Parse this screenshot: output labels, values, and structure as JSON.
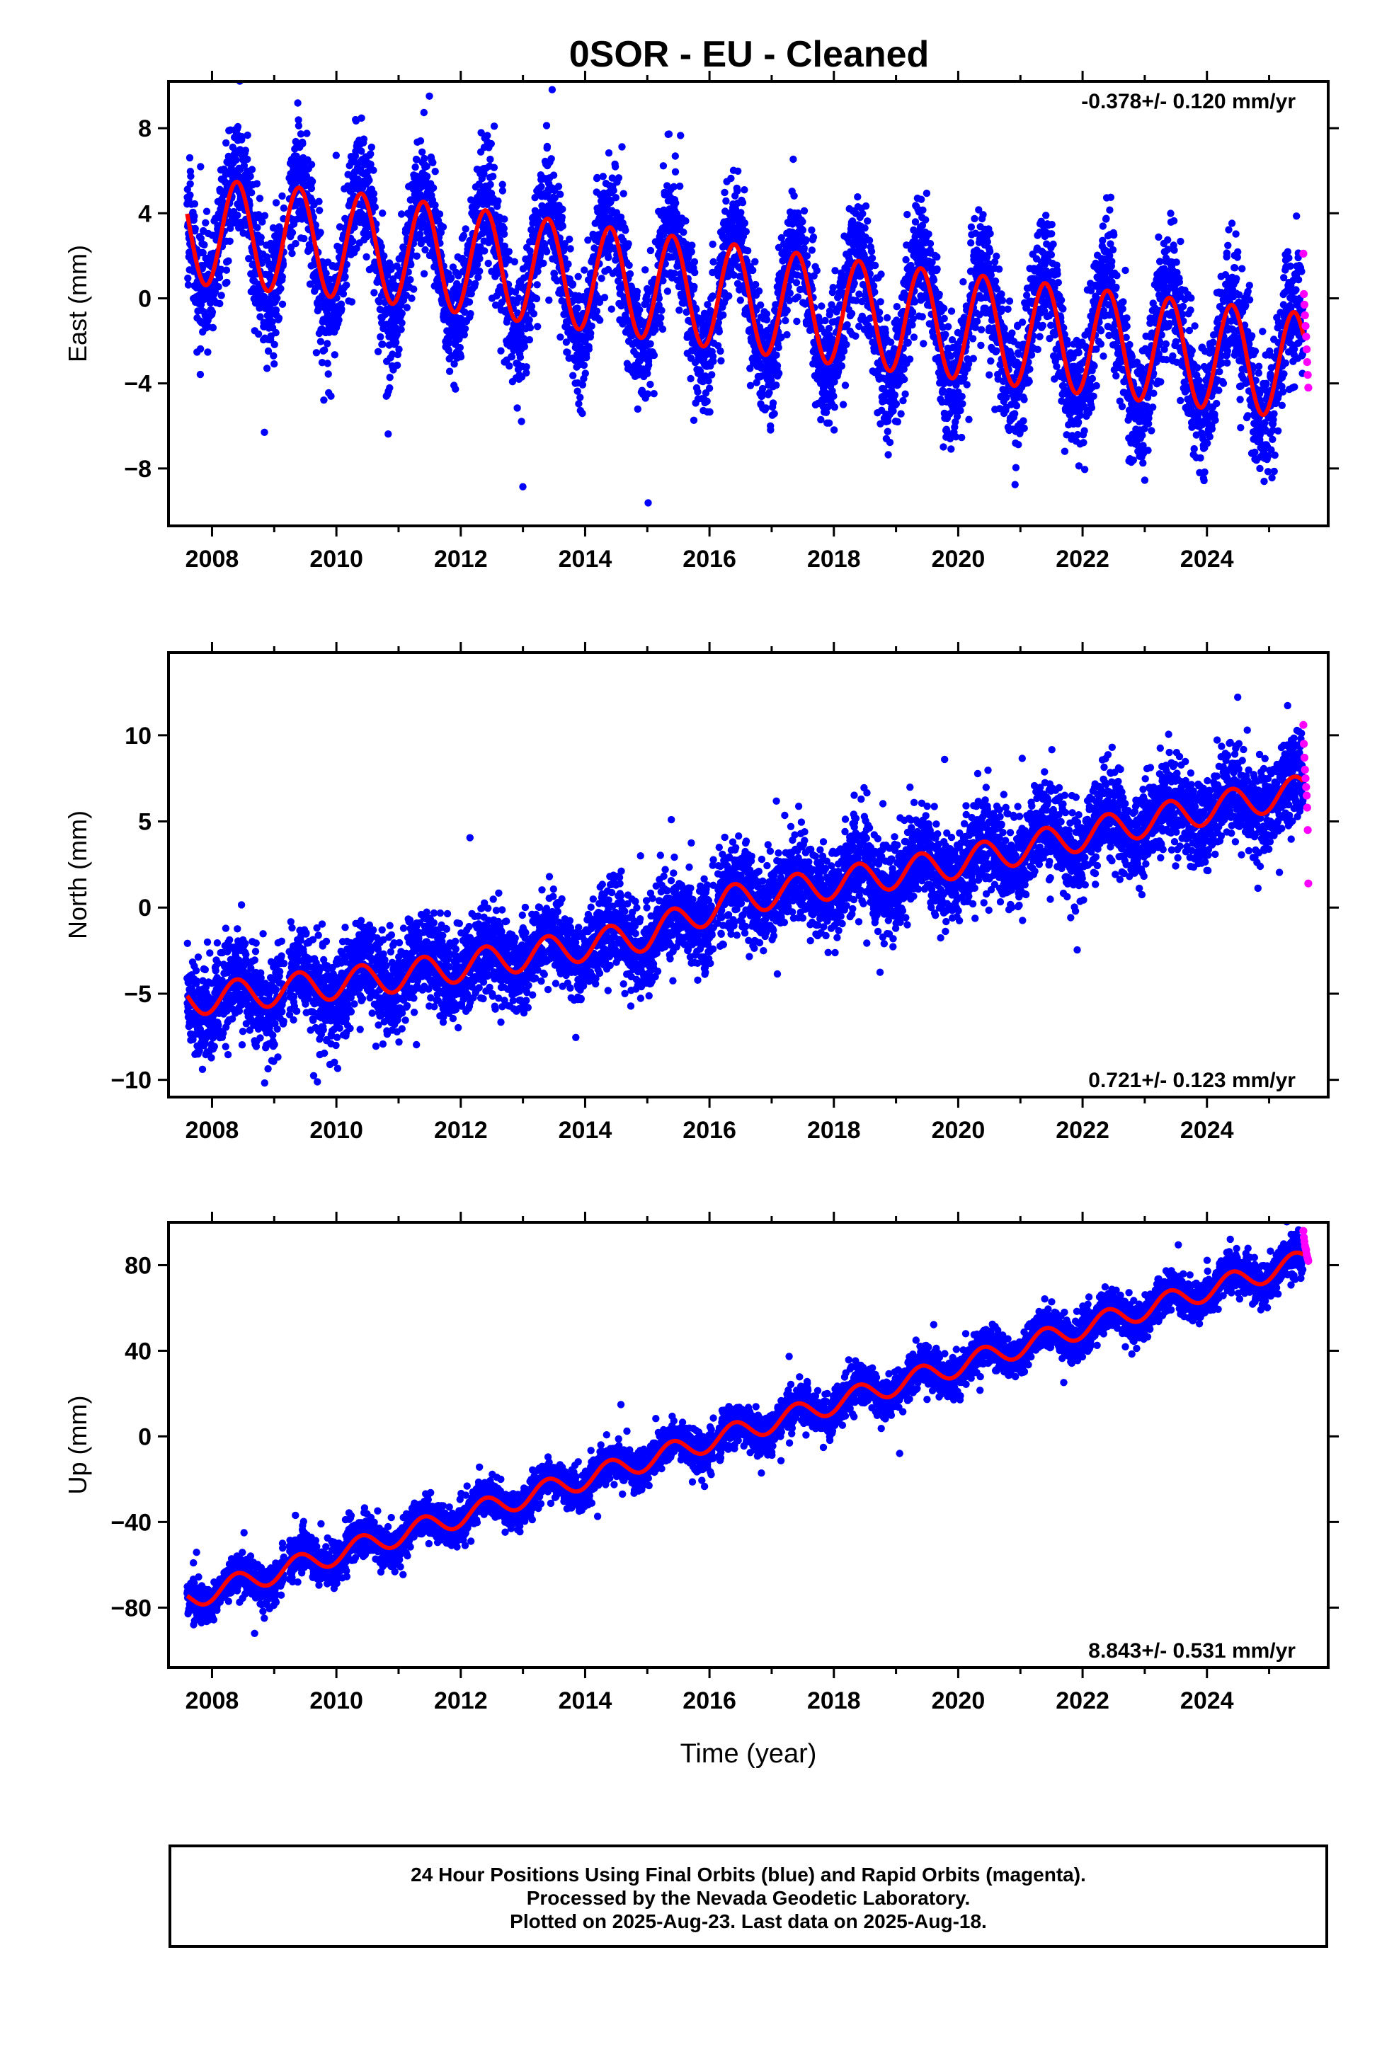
{
  "title": "0SOR  - EU - Cleaned",
  "colors": {
    "final": "#0000ff",
    "rapid": "#ff00ff",
    "fit": "#ff0000",
    "axis": "#000000"
  },
  "footer": {
    "line1": "24 Hour Positions Using Final Orbits (blue) and Rapid Orbits (magenta).",
    "line2": "Processed by the Nevada Geodetic Laboratory.",
    "line3": "Plotted on 2025-Aug-23. Last data on 2025-Aug-18."
  },
  "chart_data": [
    {
      "type": "scatter",
      "id": "east",
      "ylabel": "East (mm)",
      "xlabel": "",
      "xlim": [
        2007.3,
        2025.95
      ],
      "ylim": [
        -10.7,
        10.2
      ],
      "xticks": [
        2008,
        2010,
        2012,
        2014,
        2016,
        2018,
        2020,
        2022,
        2024
      ],
      "yticks": [
        -8,
        -4,
        0,
        4,
        8
      ],
      "ytick_labels": [
        "−8",
        "−4",
        "0",
        "4",
        "8"
      ],
      "rate_label": "-0.378+/- 0.120 mm/yr",
      "rate_position": "top-right",
      "rate_mm_per_yr": -0.378,
      "rate_sigma": 0.12,
      "series": [
        {
          "name": "Final Orbits",
          "color": "#0000ff",
          "x_start": 2007.6,
          "x_end": 2025.55,
          "intercept": 3.2,
          "rate": -0.378,
          "annual_amplitude": 3.0,
          "noise_sigma": 1.4,
          "trend_profile": [
            [
              2007.6,
              3.2
            ],
            [
              2010.5,
              2.4
            ],
            [
              2014.0,
              1.0
            ],
            [
              2018.0,
              -0.6
            ],
            [
              2022.0,
              -2.0
            ],
            [
              2025.55,
              -3.2
            ]
          ]
        },
        {
          "name": "Rapid Orbits",
          "color": "#ff00ff",
          "x_start": 2025.55,
          "x_end": 2025.63,
          "y_values": [
            2.1,
            0.2,
            -0.3,
            -0.8,
            -1.3,
            -1.8,
            -2.4,
            -3.0,
            -3.6,
            -4.2
          ]
        },
        {
          "name": "Fit",
          "color": "#ff0000",
          "rate": -0.378,
          "annual_amplitude": 2.5,
          "trend_profile": [
            [
              2007.6,
              3.2
            ],
            [
              2010.5,
              2.4
            ],
            [
              2014.0,
              1.0
            ],
            [
              2018.0,
              -0.6
            ],
            [
              2022.0,
              -2.0
            ],
            [
              2025.55,
              -3.2
            ]
          ]
        }
      ]
    },
    {
      "type": "scatter",
      "id": "north",
      "ylabel": "North (mm)",
      "xlabel": "",
      "xlim": [
        2007.3,
        2025.95
      ],
      "ylim": [
        -11.0,
        14.8
      ],
      "xticks": [
        2008,
        2010,
        2012,
        2014,
        2016,
        2018,
        2020,
        2022,
        2024
      ],
      "yticks": [
        -10,
        -5,
        0,
        5,
        10
      ],
      "ytick_labels": [
        "−10",
        "−5",
        "0",
        "5",
        "10"
      ],
      "rate_label": "0.721+/- 0.123 mm/yr",
      "rate_position": "bottom-right",
      "rate_mm_per_yr": 0.721,
      "rate_sigma": 0.123,
      "series": [
        {
          "name": "Final Orbits",
          "color": "#0000ff",
          "x_start": 2007.6,
          "x_end": 2025.55,
          "intercept": -5.4,
          "rate": 0.721,
          "annual_amplitude": 1.0,
          "noise_sigma": 1.3,
          "trend_profile": [
            [
              2007.6,
              -5.4
            ],
            [
              2011.0,
              -4.0
            ],
            [
              2015.0,
              -1.6
            ],
            [
              2016.3,
              0.4
            ],
            [
              2020.0,
              2.6
            ],
            [
              2023.0,
              5.0
            ],
            [
              2025.55,
              6.8
            ]
          ]
        },
        {
          "name": "Rapid Orbits",
          "color": "#ff00ff",
          "x_start": 2025.55,
          "x_end": 2025.63,
          "y_values": [
            10.6,
            9.5,
            8.7,
            8.0,
            7.5,
            7.0,
            6.5,
            5.8,
            4.5,
            1.4
          ]
        },
        {
          "name": "Fit",
          "color": "#ff0000",
          "rate": 0.721,
          "annual_amplitude": 0.9,
          "trend_profile": [
            [
              2007.6,
              -5.4
            ],
            [
              2011.0,
              -4.0
            ],
            [
              2015.0,
              -1.6
            ],
            [
              2016.3,
              0.4
            ],
            [
              2020.0,
              2.6
            ],
            [
              2023.0,
              5.0
            ],
            [
              2025.55,
              6.8
            ]
          ]
        }
      ]
    },
    {
      "type": "scatter",
      "id": "up",
      "ylabel": "Up (mm)",
      "xlabel": "Time (year)",
      "xlim": [
        2007.3,
        2025.95
      ],
      "ylim": [
        -108,
        100
      ],
      "xticks": [
        2008,
        2010,
        2012,
        2014,
        2016,
        2018,
        2020,
        2022,
        2024
      ],
      "yticks": [
        -80,
        -40,
        0,
        40,
        80
      ],
      "ytick_labels": [
        "−80",
        "−40",
        "0",
        "40",
        "80"
      ],
      "rate_label": "8.843+/- 0.531 mm/yr",
      "rate_position": "bottom-right",
      "rate_mm_per_yr": 8.843,
      "rate_sigma": 0.531,
      "series": [
        {
          "name": "Final Orbits",
          "color": "#0000ff",
          "x_start": 2007.6,
          "x_end": 2025.55,
          "intercept": -76,
          "rate": 8.843,
          "annual_amplitude": 5.5,
          "noise_sigma": 4.5,
          "trend_profile": [
            [
              2007.6,
              -76
            ],
            [
              2025.55,
              82
            ]
          ]
        },
        {
          "name": "Rapid Orbits",
          "color": "#ff00ff",
          "x_start": 2025.55,
          "x_end": 2025.63,
          "y_values": [
            96,
            93,
            91,
            89,
            88,
            87,
            85,
            84,
            83,
            82
          ]
        },
        {
          "name": "Fit",
          "color": "#ff0000",
          "rate": 8.843,
          "annual_amplitude": 5.0,
          "trend_profile": [
            [
              2007.6,
              -76
            ],
            [
              2025.55,
              82
            ]
          ]
        }
      ]
    }
  ]
}
